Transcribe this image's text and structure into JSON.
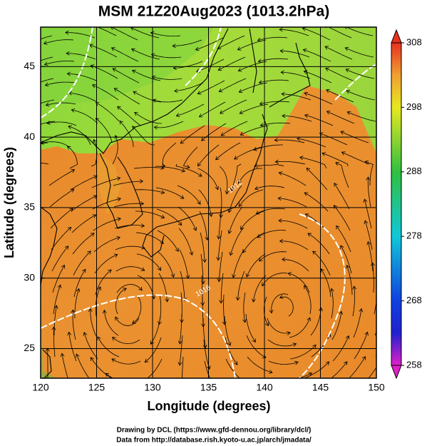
{
  "title": "MSM 21Z20Aug2023 (1013.2hPa)",
  "map": {
    "type": "map",
    "xlabel": "Longitude (degrees)",
    "ylabel": "Latitude  (degrees)",
    "xlim": [
      120,
      150
    ],
    "ylim": [
      22.9,
      47.8
    ],
    "xticks": [
      120,
      125,
      130,
      135,
      140,
      145,
      150
    ],
    "yticks": [
      25,
      30,
      35,
      40,
      45
    ],
    "grid": true,
    "contour_labels": [
      "1016",
      "1012"
    ]
  },
  "colorbar": {
    "lim": [
      258,
      308
    ],
    "ticks": [
      258,
      268,
      278,
      288,
      298,
      308
    ]
  },
  "footer": [
    "Drawing by DCL (https://www.gfd-dennou.org/library/dcl/)",
    "Data from http://database.rish.kyoto-u.ac.jp/arch/jmadata/"
  ]
}
